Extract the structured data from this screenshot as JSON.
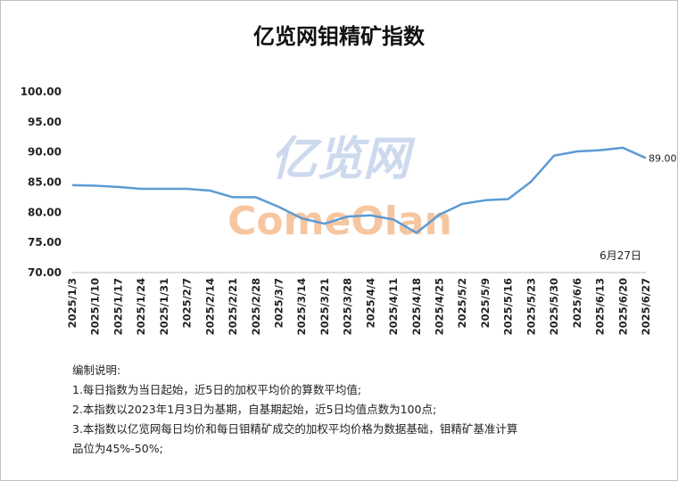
{
  "chart_data": {
    "type": "line",
    "title": "亿览网钼精矿指数",
    "watermark": [
      "亿览网",
      "ComeOlan"
    ],
    "annotation": "6月27日",
    "categories": [
      "2025/1/3",
      "2025/1/10",
      "2025/1/17",
      "2025/1/24",
      "2025/1/31",
      "2025/2/7",
      "2025/2/14",
      "2025/2/21",
      "2025/2/28",
      "2025/3/7",
      "2025/3/14",
      "2025/3/21",
      "2025/3/28",
      "2025/4/4",
      "2025/4/11",
      "2025/4/18",
      "2025/4/25",
      "2025/5/2",
      "2025/5/9",
      "2025/5/16",
      "2025/5/23",
      "2025/5/30",
      "2025/6/6",
      "2025/6/13",
      "2025/6/20",
      "2025/6/27"
    ],
    "values": [
      84.5,
      84.4,
      84.2,
      83.9,
      83.9,
      83.9,
      83.6,
      82.5,
      82.5,
      80.9,
      79.0,
      78.1,
      79.3,
      79.5,
      78.8,
      76.6,
      79.6,
      81.4,
      82.0,
      82.2,
      85.1,
      89.4,
      90.1,
      90.3,
      90.7,
      89.0
    ],
    "value_labels": [
      null,
      null,
      null,
      null,
      null,
      null,
      null,
      null,
      null,
      null,
      null,
      null,
      null,
      null,
      null,
      null,
      null,
      null,
      null,
      null,
      null,
      null,
      null,
      null,
      null,
      "89.00"
    ],
    "color": "#5b9bd5",
    "ylim": [
      70,
      100
    ],
    "yticks": [
      {
        "value": 70,
        "label": "70.00"
      },
      {
        "value": 75,
        "label": "75.00"
      },
      {
        "value": 80,
        "label": "80.00"
      },
      {
        "value": 85,
        "label": "85.00"
      },
      {
        "value": 90,
        "label": "90.00"
      },
      {
        "value": 95,
        "label": "95.00"
      },
      {
        "value": 100,
        "label": "100.00"
      }
    ],
    "grid": false,
    "notes": [
      "编制说明:",
      "1.每日指数为当日起始，近5日的加权平均价的算数平均值;",
      "2.本指数以2023年1月3日为基期，自基期起始，近5日均值点数为100点;",
      "3.本指数以亿览网每日均价和每日钼精矿成交的加权平均价格为数据基础，钼精矿基准计算",
      "品位为45%-50%;"
    ]
  }
}
